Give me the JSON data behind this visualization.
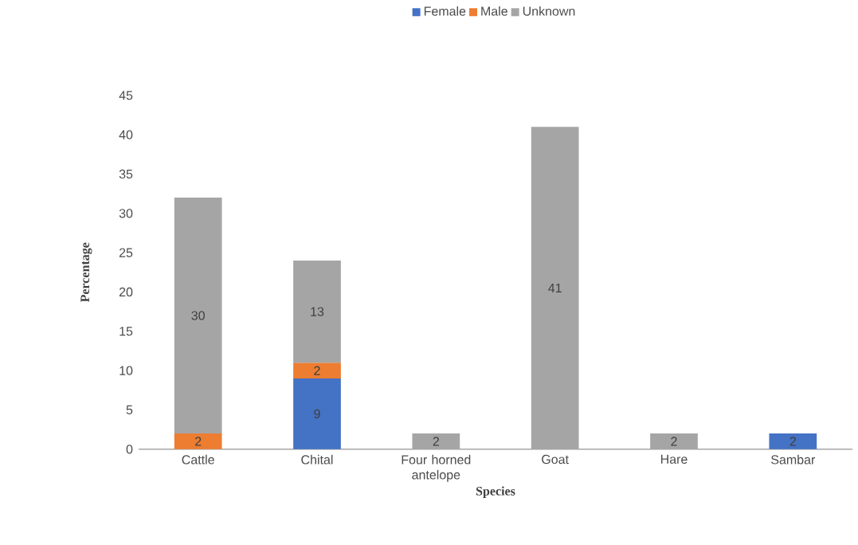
{
  "chart_data": {
    "type": "bar",
    "stacked": true,
    "xlabel": "Species",
    "ylabel": "Percentage",
    "categories": [
      "Cattle",
      "Chital",
      "Four horned antelope",
      "Goat",
      "Hare",
      "Sambar"
    ],
    "series": [
      {
        "name": "Female",
        "color": "#4472c4",
        "values": [
          null,
          9,
          null,
          null,
          null,
          2
        ]
      },
      {
        "name": "Male",
        "color": "#ed7d31",
        "values": [
          2,
          2,
          null,
          null,
          null,
          null
        ]
      },
      {
        "name": "Unknown",
        "color": "#a5a5a5",
        "values": [
          30,
          13,
          2,
          41,
          2,
          null
        ]
      }
    ],
    "ylim": [
      0,
      45
    ],
    "yticks": [
      0,
      5,
      10,
      15,
      20,
      25,
      30,
      35,
      40,
      45
    ],
    "data_labels": true,
    "legend": "top",
    "grid": false
  }
}
